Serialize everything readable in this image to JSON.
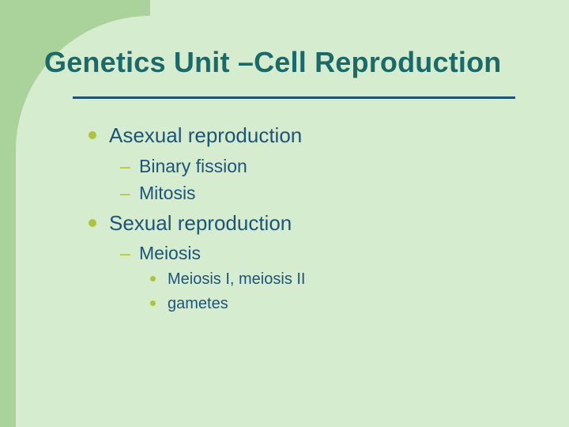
{
  "slide": {
    "background_color": "#d6ecce",
    "corner_shape_color": "#a9d39b",
    "title_color": "#1a6a6a",
    "underline_color": "#1d557a",
    "body_color": "#1d557a",
    "bullet_color": "#b0c23a",
    "title_fontsize": 36,
    "lvl1_fontsize": 26,
    "lvl2_fontsize": 23,
    "lvl3_fontsize": 20,
    "font_family": "Arial"
  },
  "title": "Genetics Unit –Cell Reproduction",
  "items": [
    {
      "label": "Asexual reproduction",
      "children": [
        {
          "label": "Binary fission"
        },
        {
          "label": "Mitosis"
        }
      ]
    },
    {
      "label": "Sexual reproduction",
      "children": [
        {
          "label": "Meiosis",
          "children": [
            {
              "label": "Meiosis I, meiosis II"
            },
            {
              "label": "gametes"
            }
          ]
        }
      ]
    }
  ]
}
